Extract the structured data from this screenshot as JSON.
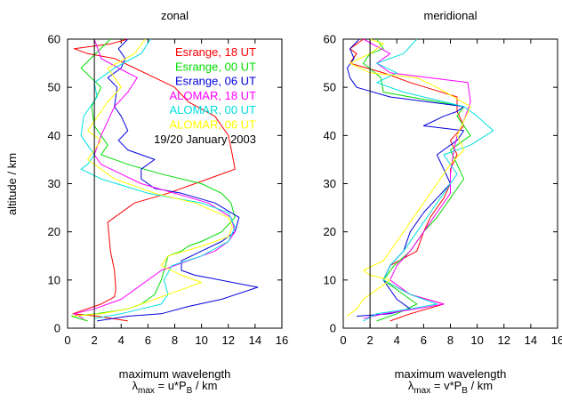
{
  "figure": {
    "shared_ylabel": "altitude / km"
  },
  "chart_data": [
    {
      "type": "line",
      "title": "zonal",
      "xlabel_line1": "maximum wavelength",
      "xlabel_lambda": "λ",
      "xlabel_sub": "max",
      "xlabel_mid": " = u*P",
      "xlabel_sub2": "B",
      "xlabel_end": " / km",
      "xlim": [
        0,
        16
      ],
      "ylim": [
        0,
        60
      ],
      "xticks": [
        0,
        2,
        4,
        6,
        8,
        10,
        12,
        14,
        16
      ],
      "yticks": [
        0,
        10,
        20,
        30,
        40,
        50,
        60
      ],
      "reference_line_x": 2,
      "legend_placement": "top-right",
      "annotation": "19/20 January 2003",
      "series": [
        {
          "name": "Esrange, 18 UT",
          "color": "#ff0000",
          "x": [
            4.5,
            2.2,
            0.4,
            2.5,
            3.5,
            3.6,
            3.5,
            3.2,
            3.0,
            5.0,
            7.5,
            10.5,
            12.5,
            12.3,
            12.0,
            11.0,
            9.0,
            8.0,
            6.5,
            5.0,
            3.5,
            1.5,
            0.5,
            3.2,
            4.5
          ],
          "y": [
            1.5,
            2.5,
            3,
            5,
            6.5,
            8,
            12,
            16,
            22,
            26,
            28,
            31,
            33,
            36,
            40,
            44,
            47,
            50,
            52,
            54,
            56,
            57,
            58,
            59,
            60
          ]
        },
        {
          "name": "Esrange, 00 UT",
          "color": "#00dd00",
          "x": [
            1.5,
            0.3,
            2.2,
            4.5,
            5.5,
            6.5,
            7.0,
            7.3,
            7.5,
            8.5,
            9.0,
            10.0,
            11.5,
            12.5,
            12.2,
            11.5,
            10.0,
            7.0,
            4.5,
            2.5,
            3.0,
            2.0,
            1.8,
            2.5,
            1.0,
            3.2
          ],
          "y": [
            1.5,
            2.5,
            3,
            4,
            5,
            7,
            10,
            13,
            15,
            16,
            17,
            18,
            20,
            23,
            26,
            28,
            30,
            32,
            34,
            36,
            38,
            42,
            46,
            50,
            54,
            60
          ]
        },
        {
          "name": "Esrange, 06 UT",
          "color": "#0000dd",
          "x": [
            2.2,
            4.5,
            7.0,
            9.0,
            11.5,
            14.2,
            9.5,
            8.5,
            8.5,
            10.0,
            11.5,
            12.5,
            12.8,
            11.0,
            8.5,
            6.5,
            5.5,
            5.5,
            6.5,
            4.5,
            3.8,
            4.5,
            4.0,
            3.5,
            3.7,
            3.0,
            4.0,
            4.3,
            3.8,
            4.5
          ],
          "y": [
            1.5,
            2.5,
            3,
            4.5,
            6,
            8.5,
            11,
            12,
            14,
            16,
            18,
            20,
            23,
            26,
            28,
            29,
            31,
            33,
            35,
            37,
            39,
            41,
            44,
            46,
            50,
            52,
            54,
            56,
            58,
            60
          ]
        },
        {
          "name": "ALOMAR, 18 UT",
          "color": "#ff00ff",
          "x": [
            1.2,
            0.5,
            2.0,
            4.0,
            5.5,
            7.0,
            9.0,
            11.0,
            12.0,
            12.5,
            12.2,
            10.5,
            8.0,
            5.5,
            4.0,
            2.5,
            2.0,
            2.5,
            3.0,
            3.5,
            4.5,
            5.2,
            3.8,
            2.5,
            2.0
          ],
          "y": [
            2,
            3,
            4,
            6,
            9,
            12,
            14,
            16,
            18,
            20,
            23,
            26,
            28,
            30,
            32,
            34,
            36,
            40,
            43,
            46,
            49,
            52,
            54,
            56,
            60
          ]
        },
        {
          "name": "ALOMAR, 00 UT",
          "color": "#00e0e0",
          "x": [
            2.0,
            4.0,
            5.5,
            7.0,
            7.5,
            7.2,
            7.8,
            10.0,
            12.0,
            12.5,
            12.0,
            10.0,
            6.0,
            2.5,
            1.0,
            1.5,
            2.0,
            1.5,
            1.0,
            1.2,
            2.2,
            2.0,
            3.5,
            5.5,
            6.2
          ],
          "y": [
            2,
            3,
            4,
            5,
            7,
            10,
            13,
            15,
            18,
            21,
            24,
            26,
            28,
            31,
            33,
            34,
            36,
            38,
            40,
            44,
            48,
            51,
            54,
            57,
            60
          ]
        },
        {
          "name": "ALOMAR, 06 UT",
          "color": "#ffff00",
          "x": [
            0.4,
            2.5,
            4.5,
            6.5,
            8.5,
            10.0,
            8.5,
            7.0,
            7.5,
            10.0,
            12.0,
            12.3,
            12.0,
            9.5,
            6.5,
            3.5,
            2.5,
            1.5,
            2.0,
            2.5,
            1.5,
            2.0,
            3.0,
            4.0,
            3.0,
            5.0,
            5.8
          ],
          "y": [
            2.5,
            3,
            4,
            6,
            8,
            9.5,
            11,
            13,
            15,
            17,
            19,
            21,
            23,
            26,
            28,
            31,
            33,
            35,
            37,
            39,
            41,
            43,
            47,
            50,
            54,
            57,
            60
          ]
        }
      ]
    },
    {
      "type": "line",
      "title": "meridional",
      "xlabel_line1": "maximum wavelength",
      "xlabel_lambda": "λ",
      "xlabel_sub": "max",
      "xlabel_mid": " = v*P",
      "xlabel_sub2": "B",
      "xlabel_end": " / km",
      "xlim": [
        0,
        16
      ],
      "ylim": [
        0,
        60
      ],
      "xticks": [
        0,
        2,
        4,
        6,
        8,
        10,
        12,
        14,
        16
      ],
      "yticks": [
        0,
        10,
        20,
        30,
        40,
        50,
        60
      ],
      "reference_line_x": 2,
      "series": [
        {
          "name": "Esrange, 18 UT",
          "color": "#ff0000",
          "x": [
            3.5,
            5.0,
            7.5,
            5.0,
            3.0,
            3.5,
            5.5,
            6.0,
            6.5,
            7.5,
            8.0,
            8.0,
            8.5,
            8.0,
            9.0,
            8.5,
            8.5,
            5.0,
            3.0,
            0.5,
            1.0,
            0.5,
            1.5
          ],
          "y": [
            1.5,
            3,
            5,
            7,
            10,
            13,
            16,
            20,
            23,
            27,
            30,
            33,
            36,
            39,
            42,
            45,
            48,
            51,
            53,
            55,
            57,
            58,
            60
          ]
        },
        {
          "name": "Esrange, 00 UT",
          "color": "#00dd00",
          "x": [
            2.5,
            4.0,
            5.5,
            4.5,
            3.0,
            3.8,
            5.0,
            6.0,
            7.0,
            8.0,
            9.0,
            8.5,
            8.0,
            9.5,
            8.5,
            9.0,
            3.0,
            2.8,
            1.5,
            2.0,
            3.0,
            2.5
          ],
          "y": [
            1.5,
            3,
            5,
            7,
            10,
            13,
            16,
            20,
            23,
            27,
            31,
            34,
            37,
            40,
            44,
            46,
            49,
            52,
            55,
            57,
            58,
            60
          ]
        },
        {
          "name": "Esrange, 06 UT",
          "color": "#0000dd",
          "x": [
            1.0,
            3.5,
            5.0,
            4.0,
            3.0,
            3.5,
            4.5,
            5.0,
            6.0,
            7.0,
            8.0,
            7.5,
            7.0,
            8.5,
            9.0,
            6.0,
            7.5,
            8.5,
            9.0,
            3.5,
            1.0,
            0.5,
            0.3,
            0.8,
            0.5,
            1.2
          ],
          "y": [
            2.5,
            3,
            4,
            6,
            10,
            13,
            16,
            20,
            24,
            27,
            30,
            33,
            36,
            39,
            41,
            42,
            44,
            45,
            46,
            48,
            50,
            52,
            54,
            56,
            58,
            60
          ]
        },
        {
          "name": "ALOMAR, 18 UT",
          "color": "#ff00ff",
          "x": [
            1.5,
            3.0,
            5.5,
            7.5,
            5.0,
            3.5,
            4.0,
            5.0,
            6.0,
            7.0,
            8.0,
            8.0,
            8.2,
            8.5,
            9.0,
            9.5,
            9.3,
            3.5,
            2.5,
            3.5,
            1.5
          ],
          "y": [
            2,
            3,
            4,
            5,
            7,
            10,
            13,
            16,
            20,
            24,
            28,
            32,
            36,
            40,
            43,
            47,
            51,
            53,
            55,
            57,
            60
          ]
        },
        {
          "name": "ALOMAR, 00 UT",
          "color": "#00e0e0",
          "x": [
            1.5,
            2.5,
            5.0,
            7.0,
            5.0,
            3.0,
            3.5,
            4.5,
            5.5,
            6.5,
            7.5,
            8.5,
            7.5,
            9.5,
            11.2,
            10.0,
            9.0,
            4.5,
            2.5,
            4.0,
            2.5,
            4.5,
            5.5
          ],
          "y": [
            1.5,
            3,
            4,
            5,
            7,
            10,
            13,
            16,
            20,
            24,
            28,
            32,
            36,
            38,
            41,
            44,
            46,
            49,
            51,
            53,
            55,
            57,
            60
          ]
        },
        {
          "name": "ALOMAR, 06 UT",
          "color": "#ffff00",
          "x": [
            0.3,
            1.0,
            1.5,
            2.5,
            3.5,
            2.0,
            1.5,
            3.0,
            4.0,
            5.0,
            6.0,
            7.0,
            8.0,
            9.0,
            8.5,
            9.0,
            9.5,
            7.0,
            5.5,
            2.0,
            0.5,
            2.0,
            3.0,
            2.0
          ],
          "y": [
            2.5,
            4,
            6,
            8,
            10,
            11,
            12,
            14,
            18,
            22,
            26,
            30,
            34,
            37,
            40,
            43,
            46,
            50,
            52,
            53,
            55,
            57,
            59,
            60
          ]
        }
      ]
    }
  ]
}
